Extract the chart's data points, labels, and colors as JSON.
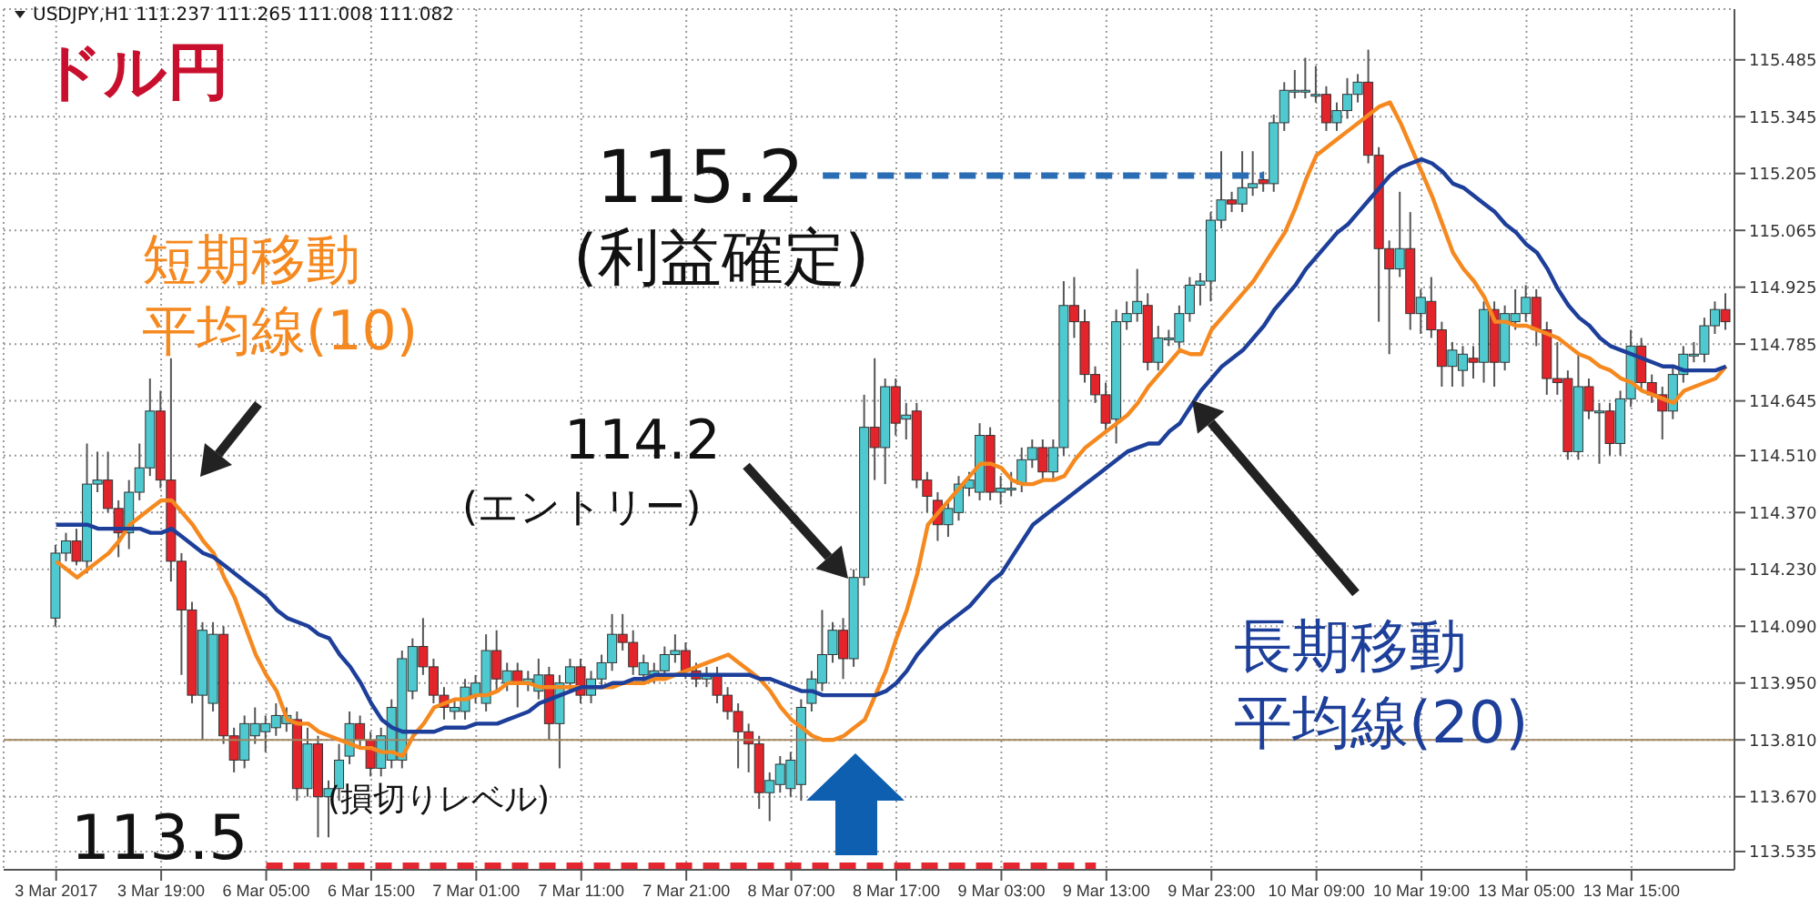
{
  "chart_data": {
    "type": "candlestick",
    "title": "ドル円",
    "categories": [
      "3 Mar 2017",
      null,
      null,
      null,
      null,
      null,
      null,
      null,
      null,
      null,
      "3 Mar 19:00",
      null,
      null,
      null,
      null,
      null,
      null,
      null,
      null,
      null,
      "6 Mar 05:00",
      null,
      null,
      null,
      null,
      null,
      null,
      null,
      null,
      null,
      "6 Mar 15:00",
      null,
      null,
      null,
      null,
      null,
      null,
      null,
      null,
      null,
      "7 Mar 01:00",
      null,
      null,
      null,
      null,
      null,
      null,
      null,
      null,
      null,
      "7 Mar 11:00",
      null,
      null,
      null,
      null,
      null,
      null,
      null,
      null,
      null,
      "7 Mar 21:00",
      null,
      null,
      null,
      null,
      null,
      null,
      null,
      null,
      null,
      "8 Mar 07:00",
      null,
      null,
      null,
      null,
      null,
      null,
      null,
      null,
      null,
      "8 Mar 17:00",
      null,
      null,
      null,
      null,
      null,
      null,
      null,
      null,
      null,
      "9 Mar 03:00",
      null,
      null,
      null,
      null,
      null,
      null,
      null,
      null,
      null,
      "9 Mar 13:00",
      null,
      null,
      null,
      null,
      null,
      null,
      null,
      null,
      null,
      "9 Mar 23:00",
      null,
      null,
      null,
      null,
      null,
      null,
      null,
      null,
      null,
      "10 Mar 09:00",
      null,
      null,
      null,
      null,
      null,
      null,
      null,
      null,
      null,
      "10 Mar 19:00",
      null,
      null,
      null,
      null,
      null,
      null,
      null,
      null,
      null,
      "13 Mar 05:00",
      null,
      null,
      null,
      null,
      null,
      null,
      null,
      null,
      null,
      "13 Mar 15:00",
      null,
      null,
      null,
      null,
      null,
      null,
      null,
      null,
      null
    ],
    "ohlc": [
      [
        114.11,
        114.29,
        114.09,
        114.27
      ],
      [
        114.27,
        114.32,
        114.25,
        114.3
      ],
      [
        114.3,
        114.33,
        114.24,
        114.25
      ],
      [
        114.25,
        114.54,
        114.22,
        114.44
      ],
      [
        114.44,
        114.52,
        114.42,
        114.45
      ],
      [
        114.45,
        114.52,
        114.37,
        114.38
      ],
      [
        114.38,
        114.4,
        114.26,
        114.32
      ],
      [
        114.32,
        114.45,
        114.28,
        114.42
      ],
      [
        114.42,
        114.54,
        114.4,
        114.48
      ],
      [
        114.48,
        114.7,
        114.46,
        114.62
      ],
      [
        114.62,
        114.67,
        114.43,
        114.45
      ],
      [
        114.45,
        114.75,
        114.2,
        114.25
      ],
      [
        114.25,
        114.27,
        113.97,
        114.13
      ],
      [
        114.13,
        114.15,
        113.9,
        113.92
      ],
      [
        113.92,
        114.1,
        113.81,
        114.08
      ],
      [
        113.9,
        114.1,
        113.88,
        114.07
      ],
      [
        114.07,
        114.09,
        113.8,
        113.82
      ],
      [
        113.82,
        113.84,
        113.73,
        113.76
      ],
      [
        113.76,
        113.87,
        113.74,
        113.85
      ],
      [
        113.82,
        113.89,
        113.8,
        113.85
      ],
      [
        113.83,
        113.87,
        113.78,
        113.85
      ],
      [
        113.84,
        113.9,
        113.82,
        113.87
      ],
      [
        113.85,
        113.89,
        113.83,
        113.87
      ],
      [
        113.86,
        113.88,
        113.66,
        113.69
      ],
      [
        113.69,
        113.84,
        113.67,
        113.8
      ],
      [
        113.8,
        113.82,
        113.57,
        113.67
      ],
      [
        113.67,
        113.71,
        113.57,
        113.69
      ],
      [
        113.69,
        113.8,
        113.66,
        113.76
      ],
      [
        113.77,
        113.88,
        113.75,
        113.85
      ],
      [
        113.85,
        113.87,
        113.79,
        113.81
      ],
      [
        113.81,
        113.83,
        113.72,
        113.74
      ],
      [
        113.74,
        113.84,
        113.72,
        113.82
      ],
      [
        113.76,
        113.91,
        113.74,
        113.89
      ],
      [
        113.76,
        114.03,
        113.74,
        114.01
      ],
      [
        113.93,
        114.06,
        113.91,
        114.04
      ],
      [
        114.04,
        114.11,
        113.97,
        113.99
      ],
      [
        113.99,
        114.01,
        113.9,
        113.92
      ],
      [
        113.92,
        113.94,
        113.86,
        113.89
      ],
      [
        113.88,
        113.91,
        113.86,
        113.89
      ],
      [
        113.88,
        113.96,
        113.86,
        113.94
      ],
      [
        113.92,
        113.97,
        113.9,
        113.95
      ],
      [
        113.9,
        114.07,
        113.88,
        114.03
      ],
      [
        114.03,
        114.08,
        113.93,
        113.96
      ],
      [
        113.95,
        114.0,
        113.93,
        113.98
      ],
      [
        113.98,
        114.0,
        113.89,
        113.95
      ],
      [
        113.95,
        113.98,
        113.93,
        113.96
      ],
      [
        113.93,
        114.01,
        113.91,
        113.97
      ],
      [
        113.97,
        113.99,
        113.81,
        113.85
      ],
      [
        113.85,
        113.97,
        113.74,
        113.95
      ],
      [
        113.95,
        114.01,
        113.93,
        113.99
      ],
      [
        113.99,
        114.01,
        113.9,
        113.92
      ],
      [
        113.92,
        113.98,
        113.9,
        113.96
      ],
      [
        113.96,
        114.02,
        113.94,
        114.0
      ],
      [
        114.0,
        114.12,
        113.98,
        114.07
      ],
      [
        114.07,
        114.12,
        114.03,
        114.05
      ],
      [
        114.05,
        114.08,
        113.97,
        113.99
      ],
      [
        113.97,
        114.02,
        113.95,
        114.0
      ],
      [
        113.97,
        114.0,
        113.95,
        113.98
      ],
      [
        113.98,
        114.04,
        113.96,
        114.02
      ],
      [
        114.02,
        114.07,
        114.0,
        114.03
      ],
      [
        114.03,
        114.05,
        113.96,
        113.98
      ],
      [
        113.98,
        114.0,
        113.94,
        113.96
      ],
      [
        113.96,
        113.99,
        113.94,
        113.97
      ],
      [
        113.97,
        113.99,
        113.9,
        113.92
      ],
      [
        113.92,
        113.94,
        113.86,
        113.88
      ],
      [
        113.88,
        113.9,
        113.74,
        113.83
      ],
      [
        113.83,
        113.85,
        113.73,
        113.8
      ],
      [
        113.8,
        113.82,
        113.64,
        113.68
      ],
      [
        113.68,
        113.73,
        113.61,
        113.71
      ],
      [
        113.7,
        113.77,
        113.68,
        113.75
      ],
      [
        113.69,
        113.78,
        113.67,
        113.76
      ],
      [
        113.7,
        113.91,
        113.66,
        113.89
      ],
      [
        113.9,
        113.98,
        113.88,
        113.96
      ],
      [
        113.95,
        114.13,
        113.93,
        114.02
      ],
      [
        114.02,
        114.1,
        114.0,
        114.08
      ],
      [
        114.08,
        114.11,
        113.96,
        114.01
      ],
      [
        114.01,
        114.23,
        113.99,
        114.21
      ],
      [
        114.21,
        114.66,
        114.19,
        114.58
      ],
      [
        114.58,
        114.75,
        114.45,
        114.53
      ],
      [
        114.53,
        114.7,
        114.44,
        114.68
      ],
      [
        114.68,
        114.7,
        114.56,
        114.59
      ],
      [
        114.6,
        114.64,
        114.55,
        114.61
      ],
      [
        114.62,
        114.64,
        114.43,
        114.45
      ],
      [
        114.45,
        114.47,
        114.37,
        114.41
      ],
      [
        114.4,
        114.42,
        114.3,
        114.34
      ],
      [
        114.34,
        114.4,
        114.31,
        114.38
      ],
      [
        114.37,
        114.46,
        114.35,
        114.44
      ],
      [
        114.43,
        114.47,
        114.41,
        114.45
      ],
      [
        114.42,
        114.59,
        114.4,
        114.56
      ],
      [
        114.56,
        114.58,
        114.4,
        114.42
      ],
      [
        114.42,
        114.46,
        114.39,
        114.43
      ],
      [
        114.43,
        114.47,
        114.41,
        114.43
      ],
      [
        114.44,
        114.53,
        114.42,
        114.5
      ],
      [
        114.5,
        114.55,
        114.48,
        114.53
      ],
      [
        114.53,
        114.55,
        114.45,
        114.47
      ],
      [
        114.47,
        114.55,
        114.45,
        114.53
      ],
      [
        114.53,
        114.94,
        114.51,
        114.88
      ],
      [
        114.88,
        114.95,
        114.8,
        114.84
      ],
      [
        114.84,
        114.87,
        114.69,
        114.71
      ],
      [
        114.71,
        114.73,
        114.64,
        114.66
      ],
      [
        114.66,
        114.69,
        114.57,
        114.59
      ],
      [
        114.6,
        114.87,
        114.54,
        114.84
      ],
      [
        114.84,
        114.89,
        114.82,
        114.86
      ],
      [
        114.86,
        114.97,
        114.84,
        114.89
      ],
      [
        114.88,
        114.91,
        114.72,
        114.74
      ],
      [
        114.74,
        114.83,
        114.72,
        114.8
      ],
      [
        114.8,
        114.82,
        114.78,
        114.8
      ],
      [
        114.79,
        114.88,
        114.77,
        114.86
      ],
      [
        114.86,
        114.95,
        114.84,
        114.93
      ],
      [
        114.93,
        114.96,
        114.88,
        114.94
      ],
      [
        114.94,
        115.11,
        114.89,
        115.09
      ],
      [
        115.09,
        115.26,
        115.07,
        115.14
      ],
      [
        115.14,
        115.16,
        115.11,
        115.13
      ],
      [
        115.13,
        115.26,
        115.11,
        115.17
      ],
      [
        115.17,
        115.26,
        115.15,
        115.18
      ],
      [
        115.19,
        115.21,
        115.16,
        115.18
      ],
      [
        115.18,
        115.35,
        115.16,
        115.33
      ],
      [
        115.33,
        115.43,
        115.31,
        115.41
      ],
      [
        115.41,
        115.46,
        115.39,
        115.41
      ],
      [
        115.41,
        115.49,
        115.39,
        115.41
      ],
      [
        115.4,
        115.47,
        115.38,
        115.4
      ],
      [
        115.4,
        115.42,
        115.31,
        115.33
      ],
      [
        115.33,
        115.38,
        115.31,
        115.36
      ],
      [
        115.36,
        115.44,
        115.34,
        115.4
      ],
      [
        115.4,
        115.45,
        115.38,
        115.43
      ],
      [
        115.43,
        115.51,
        115.23,
        115.25
      ],
      [
        115.25,
        115.27,
        114.84,
        115.02
      ],
      [
        115.02,
        115.04,
        114.76,
        114.97
      ],
      [
        114.97,
        115.16,
        114.95,
        115.02
      ],
      [
        115.02,
        115.11,
        114.82,
        114.86
      ],
      [
        114.86,
        114.92,
        114.81,
        114.9
      ],
      [
        114.89,
        114.95,
        114.8,
        114.82
      ],
      [
        114.82,
        114.84,
        114.68,
        114.73
      ],
      [
        114.73,
        114.79,
        114.68,
        114.77
      ],
      [
        114.72,
        114.78,
        114.68,
        114.76
      ],
      [
        114.75,
        114.78,
        114.7,
        114.74
      ],
      [
        114.74,
        114.89,
        114.69,
        114.87
      ],
      [
        114.87,
        114.89,
        114.68,
        114.74
      ],
      [
        114.74,
        114.88,
        114.72,
        114.86
      ],
      [
        114.84,
        114.92,
        114.82,
        114.86
      ],
      [
        114.86,
        114.93,
        114.84,
        114.9
      ],
      [
        114.9,
        114.92,
        114.78,
        114.82
      ],
      [
        114.82,
        114.84,
        114.66,
        114.7
      ],
      [
        114.7,
        114.79,
        114.66,
        114.69
      ],
      [
        114.7,
        114.72,
        114.5,
        114.52
      ],
      [
        114.52,
        114.76,
        114.5,
        114.68
      ],
      [
        114.68,
        114.7,
        114.6,
        114.62
      ],
      [
        114.62,
        114.64,
        114.49,
        114.62
      ],
      [
        114.62,
        114.64,
        114.51,
        114.54
      ],
      [
        114.54,
        114.67,
        114.51,
        114.65
      ],
      [
        114.65,
        114.82,
        114.63,
        114.78
      ],
      [
        114.78,
        114.8,
        114.67,
        114.69
      ],
      [
        114.69,
        114.71,
        114.64,
        114.66
      ],
      [
        114.66,
        114.68,
        114.55,
        114.62
      ],
      [
        114.62,
        114.73,
        114.6,
        114.71
      ],
      [
        114.71,
        114.78,
        114.69,
        114.76
      ],
      [
        114.76,
        114.79,
        114.74,
        114.76
      ],
      [
        114.76,
        114.85,
        114.74,
        114.83
      ],
      [
        114.83,
        114.89,
        114.81,
        114.87
      ],
      [
        114.87,
        114.91,
        114.82,
        114.84
      ]
    ],
    "colors": [
      "#4ec9cf",
      "#4ec9cf",
      "#e3242b",
      "#4ec9cf",
      "#4ec9cf",
      "#e3242b",
      "#e3242b",
      "#4ec9cf",
      "#4ec9cf",
      "#4ec9cf",
      "#e3242b",
      "#e3242b",
      "#e3242b",
      "#e3242b",
      "#4ec9cf",
      "#4ec9cf",
      "#e3242b",
      "#e3242b",
      "#4ec9cf",
      "#4ec9cf",
      "#4ec9cf",
      "#4ec9cf",
      "#4ec9cf",
      "#e3242b",
      "#4ec9cf",
      "#e3242b",
      "#4ec9cf",
      "#4ec9cf",
      "#4ec9cf",
      "#e3242b",
      "#e3242b",
      "#4ec9cf",
      "#4ec9cf",
      "#4ec9cf",
      "#4ec9cf",
      "#e3242b",
      "#e3242b",
      "#e3242b",
      "#4ec9cf",
      "#4ec9cf",
      "#4ec9cf",
      "#4ec9cf",
      "#e3242b",
      "#4ec9cf",
      "#e3242b",
      "#4ec9cf",
      "#4ec9cf",
      "#e3242b",
      "#4ec9cf",
      "#4ec9cf",
      "#e3242b",
      "#4ec9cf",
      "#4ec9cf",
      "#4ec9cf",
      "#e3242b",
      "#e3242b",
      "#4ec9cf",
      "#4ec9cf",
      "#4ec9cf",
      "#4ec9cf",
      "#e3242b",
      "#e3242b",
      "#4ec9cf",
      "#e3242b",
      "#e3242b",
      "#e3242b",
      "#e3242b",
      "#e3242b",
      "#4ec9cf",
      "#4ec9cf",
      "#4ec9cf",
      "#4ec9cf",
      "#4ec9cf",
      "#4ec9cf",
      "#4ec9cf",
      "#e3242b",
      "#4ec9cf",
      "#4ec9cf",
      "#e3242b",
      "#4ec9cf",
      "#e3242b",
      "#4ec9cf",
      "#e3242b",
      "#e3242b",
      "#e3242b",
      "#4ec9cf",
      "#4ec9cf",
      "#4ec9cf",
      "#4ec9cf",
      "#e3242b",
      "#4ec9cf",
      "#4ec9cf",
      "#4ec9cf",
      "#4ec9cf",
      "#e3242b",
      "#4ec9cf",
      "#4ec9cf",
      "#e3242b",
      "#e3242b",
      "#e3242b",
      "#e3242b",
      "#4ec9cf",
      "#4ec9cf",
      "#4ec9cf",
      "#e3242b",
      "#4ec9cf",
      "#4ec9cf",
      "#4ec9cf",
      "#4ec9cf",
      "#4ec9cf",
      "#4ec9cf",
      "#4ec9cf",
      "#e3242b",
      "#4ec9cf",
      "#4ec9cf",
      "#e3242b",
      "#4ec9cf",
      "#4ec9cf",
      "#4ec9cf",
      "#4ec9cf",
      "#4ec9cf",
      "#e3242b",
      "#4ec9cf",
      "#4ec9cf",
      "#4ec9cf",
      "#e3242b",
      "#e3242b",
      "#e3242b",
      "#4ec9cf",
      "#e3242b",
      "#4ec9cf",
      "#e3242b",
      "#e3242b",
      "#4ec9cf",
      "#4ec9cf",
      "#e3242b",
      "#4ec9cf",
      "#e3242b",
      "#4ec9cf",
      "#4ec9cf",
      "#4ec9cf",
      "#e3242b",
      "#e3242b",
      "#e3242b",
      "#e3242b",
      "#4ec9cf",
      "#e3242b",
      "#4ec9cf",
      "#e3242b",
      "#4ec9cf",
      "#4ec9cf",
      "#e3242b",
      "#e3242b",
      "#e3242b",
      "#4ec9cf",
      "#4ec9cf",
      "#4ec9cf",
      "#4ec9cf",
      "#4ec9cf",
      "#e3242b"
    ],
    "series": [
      {
        "type": "line",
        "name": "短期移動平均線(10)",
        "color": "#f5891f",
        "values": [
          114.25,
          114.23,
          114.21,
          114.23,
          114.25,
          114.27,
          114.3,
          114.34,
          114.36,
          114.38,
          114.4,
          114.4,
          114.37,
          114.34,
          114.3,
          114.27,
          114.21,
          114.16,
          114.09,
          114.02,
          113.97,
          113.93,
          113.86,
          113.85,
          113.85,
          113.83,
          113.82,
          113.81,
          113.8,
          113.79,
          113.79,
          113.78,
          113.78,
          113.77,
          113.82,
          113.85,
          113.89,
          113.9,
          113.91,
          113.91,
          113.92,
          113.92,
          113.93,
          113.95,
          113.95,
          113.95,
          113.94,
          113.94,
          113.94,
          113.94,
          113.94,
          113.94,
          113.94,
          113.94,
          113.95,
          113.95,
          113.95,
          113.96,
          113.96,
          113.97,
          113.98,
          113.99,
          114.0,
          114.01,
          114.02,
          114.0,
          113.98,
          113.96,
          113.93,
          113.89,
          113.86,
          113.84,
          113.82,
          113.81,
          113.81,
          113.82,
          113.84,
          113.86,
          113.92,
          113.98,
          114.06,
          114.13,
          114.22,
          114.34,
          114.37,
          114.4,
          114.43,
          114.46,
          114.49,
          114.49,
          114.48,
          114.45,
          114.44,
          114.44,
          114.45,
          114.45,
          114.46,
          114.5,
          114.53,
          114.55,
          114.57,
          114.59,
          114.61,
          114.64,
          114.68,
          114.71,
          114.74,
          114.77,
          114.76,
          114.76,
          114.82,
          114.85,
          114.88,
          114.91,
          114.94,
          114.98,
          115.02,
          115.06,
          115.12,
          115.19,
          115.25,
          115.27,
          115.29,
          115.31,
          115.33,
          115.35,
          115.37,
          115.38,
          115.33,
          115.27,
          115.21,
          115.15,
          115.08,
          115.01,
          114.97,
          114.94,
          114.9,
          114.84,
          114.84,
          114.83,
          114.83,
          114.82,
          114.81,
          114.8,
          114.78,
          114.76,
          114.75,
          114.73,
          114.72,
          114.7,
          114.69,
          114.67,
          114.66,
          114.65,
          114.64,
          114.67,
          114.68,
          114.69,
          114.7,
          114.73
        ]
      },
      {
        "type": "line",
        "name": "長期移動平均線(20)",
        "color": "#1d3f9a",
        "values": [
          114.34,
          114.34,
          114.34,
          114.34,
          114.33,
          114.33,
          114.33,
          114.33,
          114.33,
          114.32,
          114.32,
          114.33,
          114.31,
          114.29,
          114.27,
          114.26,
          114.24,
          114.22,
          114.2,
          114.18,
          114.16,
          114.13,
          114.11,
          114.1,
          114.09,
          114.07,
          114.06,
          114.02,
          113.99,
          113.95,
          113.9,
          113.86,
          113.84,
          113.83,
          113.83,
          113.83,
          113.83,
          113.84,
          113.84,
          113.84,
          113.85,
          113.85,
          113.85,
          113.86,
          113.87,
          113.88,
          113.9,
          113.91,
          113.92,
          113.93,
          113.94,
          113.94,
          113.94,
          113.95,
          113.95,
          113.96,
          113.96,
          113.97,
          113.97,
          113.97,
          113.97,
          113.97,
          113.97,
          113.97,
          113.97,
          113.97,
          113.97,
          113.96,
          113.96,
          113.95,
          113.94,
          113.93,
          113.93,
          113.92,
          113.92,
          113.92,
          113.92,
          113.92,
          113.92,
          113.93,
          113.95,
          113.98,
          114.02,
          114.05,
          114.08,
          114.1,
          114.12,
          114.14,
          114.17,
          114.2,
          114.22,
          114.26,
          114.3,
          114.34,
          114.36,
          114.38,
          114.4,
          114.42,
          114.44,
          114.46,
          114.48,
          114.5,
          114.52,
          114.53,
          114.54,
          114.54,
          114.57,
          114.59,
          114.63,
          114.67,
          114.7,
          114.73,
          114.75,
          114.77,
          114.8,
          114.83,
          114.87,
          114.9,
          114.93,
          114.97,
          115.0,
          115.03,
          115.06,
          115.08,
          115.11,
          115.14,
          115.17,
          115.2,
          115.22,
          115.23,
          115.24,
          115.23,
          115.21,
          115.18,
          115.17,
          115.15,
          115.13,
          115.11,
          115.08,
          115.06,
          115.03,
          115.01,
          114.97,
          114.92,
          114.88,
          114.85,
          114.83,
          114.8,
          114.78,
          114.77,
          114.76,
          114.75,
          114.74,
          114.73,
          114.73,
          114.72,
          114.72,
          114.72,
          114.72,
          114.73
        ]
      }
    ],
    "ylim": [
      113.49,
      115.61
    ],
    "yticks": [
      113.535,
      {
        "value": 113.67,
        "label": "113.670"
      },
      {
        "value": 113.81,
        "label": "113.810"
      },
      {
        "value": 113.95,
        "label": "113.950"
      },
      {
        "value": 114.09,
        "label": "114.090"
      },
      {
        "value": 114.23,
        "label": "114.230"
      },
      {
        "value": 114.37,
        "label": "114.370"
      },
      {
        "value": 114.51,
        "label": "114.510"
      },
      114.645,
      114.785,
      114.925,
      115.065,
      115.205,
      115.345,
      115.485
    ],
    "grid": true,
    "ref_lines": [
      {
        "axis": "y",
        "value": 115.2,
        "label": "115.2",
        "color": "#2a6db5",
        "line_style": "dashed"
      },
      {
        "axis": "y",
        "value": 113.5,
        "label": "113.5",
        "color": "#e32630",
        "line_style": "dashed"
      },
      {
        "axis": "y",
        "value": 113.81,
        "color": "#a08660",
        "line_style": "solid"
      }
    ],
    "annotations": [
      "USDJPY,H1  111.237 111.265 111.008 111.082",
      "(利益確定)",
      "114.2",
      "(エントリー)",
      "(損切りレベル)"
    ]
  }
}
